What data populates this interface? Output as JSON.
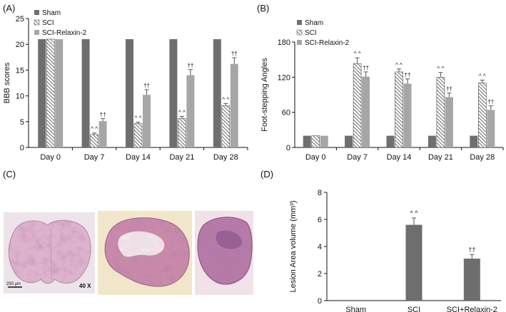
{
  "panels": {
    "a": "(A)",
    "b": "(B)",
    "c": "(C)",
    "d": "(D)"
  },
  "micrographs": {
    "scale_bar_label": "250 μm",
    "magnification": "40 X"
  },
  "colors": {
    "sham": "#6e6e6e",
    "sci_hatch": "#5a5a5a",
    "relaxin": "#a6a6a6",
    "axis": "#111111",
    "stain_pink": "#d9a9c6",
    "stain_purple": "#8e5a9a"
  },
  "chart_data": [
    {
      "id": "A",
      "type": "bar",
      "ylabel": "BBB scores",
      "ylim": [
        0,
        25
      ],
      "yticks": [
        "0",
        "5",
        "10",
        "15",
        "20",
        "25"
      ],
      "categories": [
        "Day 0",
        "Day 7",
        "Day 14",
        "Day 21",
        "Day 28"
      ],
      "legend": {
        "placement": "top-left"
      },
      "series": [
        {
          "name": "Sham",
          "pattern": "solid-dark",
          "values": [
            21,
            21,
            21,
            21,
            21
          ],
          "errors": [
            0,
            0,
            0,
            0,
            0
          ],
          "marks": [
            "",
            "",
            "",
            "",
            ""
          ]
        },
        {
          "name": "SCI",
          "pattern": "hatched",
          "values": [
            21,
            2.5,
            4.6,
            5.6,
            8.1
          ],
          "errors": [
            0,
            0.3,
            0.3,
            0.4,
            0.4
          ],
          "marks": [
            "",
            "^ ^",
            "^ ^",
            "^ ^",
            "^ ^"
          ]
        },
        {
          "name": "SCI-Relaxin-2",
          "pattern": "solid-light",
          "values": [
            21,
            5.1,
            10.2,
            14.0,
            16.2
          ],
          "errors": [
            0,
            0.5,
            1.0,
            1.1,
            1.2
          ],
          "marks": [
            "",
            "††",
            "††",
            "††",
            "††"
          ]
        }
      ]
    },
    {
      "id": "B",
      "type": "bar",
      "ylabel": "Foot-stepping Angles",
      "ylim": [
        0,
        180
      ],
      "yticks": [
        "0",
        "60",
        "120",
        "180"
      ],
      "categories": [
        "Day 0",
        "Day 7",
        "Day 14",
        "Day 21",
        "Day 28"
      ],
      "legend": {
        "placement": "top-left"
      },
      "series": [
        {
          "name": "Sham",
          "pattern": "solid-dark",
          "values": [
            20,
            20,
            20,
            20,
            20
          ],
          "errors": [
            0,
            0,
            0,
            0,
            0
          ],
          "marks": [
            "",
            "",
            "",
            "",
            ""
          ]
        },
        {
          "name": "SCI",
          "pattern": "hatched",
          "values": [
            20,
            143,
            129,
            120,
            110
          ],
          "errors": [
            0,
            10,
            5,
            8,
            5
          ],
          "marks": [
            "",
            "^ ^",
            "^ ^",
            "^ ^",
            "^ ^"
          ]
        },
        {
          "name": "SCI-Relaxin-2",
          "pattern": "solid-light",
          "values": [
            20,
            121,
            109,
            86,
            64
          ],
          "errors": [
            0,
            8,
            8,
            7,
            7
          ],
          "marks": [
            "",
            "††",
            "††",
            "††",
            "††"
          ]
        }
      ]
    },
    {
      "id": "D",
      "type": "bar",
      "ylabel": "Lesion Area volume (mm³)",
      "ylim": [
        0,
        8
      ],
      "yticks": [
        "0",
        "2",
        "4",
        "6",
        "8"
      ],
      "categories": [
        "Sham",
        "SCI",
        "SCI+Relaxin-2"
      ],
      "series": [
        {
          "values": [
            0,
            5.6,
            3.1
          ],
          "errors": [
            0,
            0.5,
            0.3
          ],
          "marks": [
            "",
            "^ ^",
            "††"
          ]
        }
      ]
    }
  ]
}
